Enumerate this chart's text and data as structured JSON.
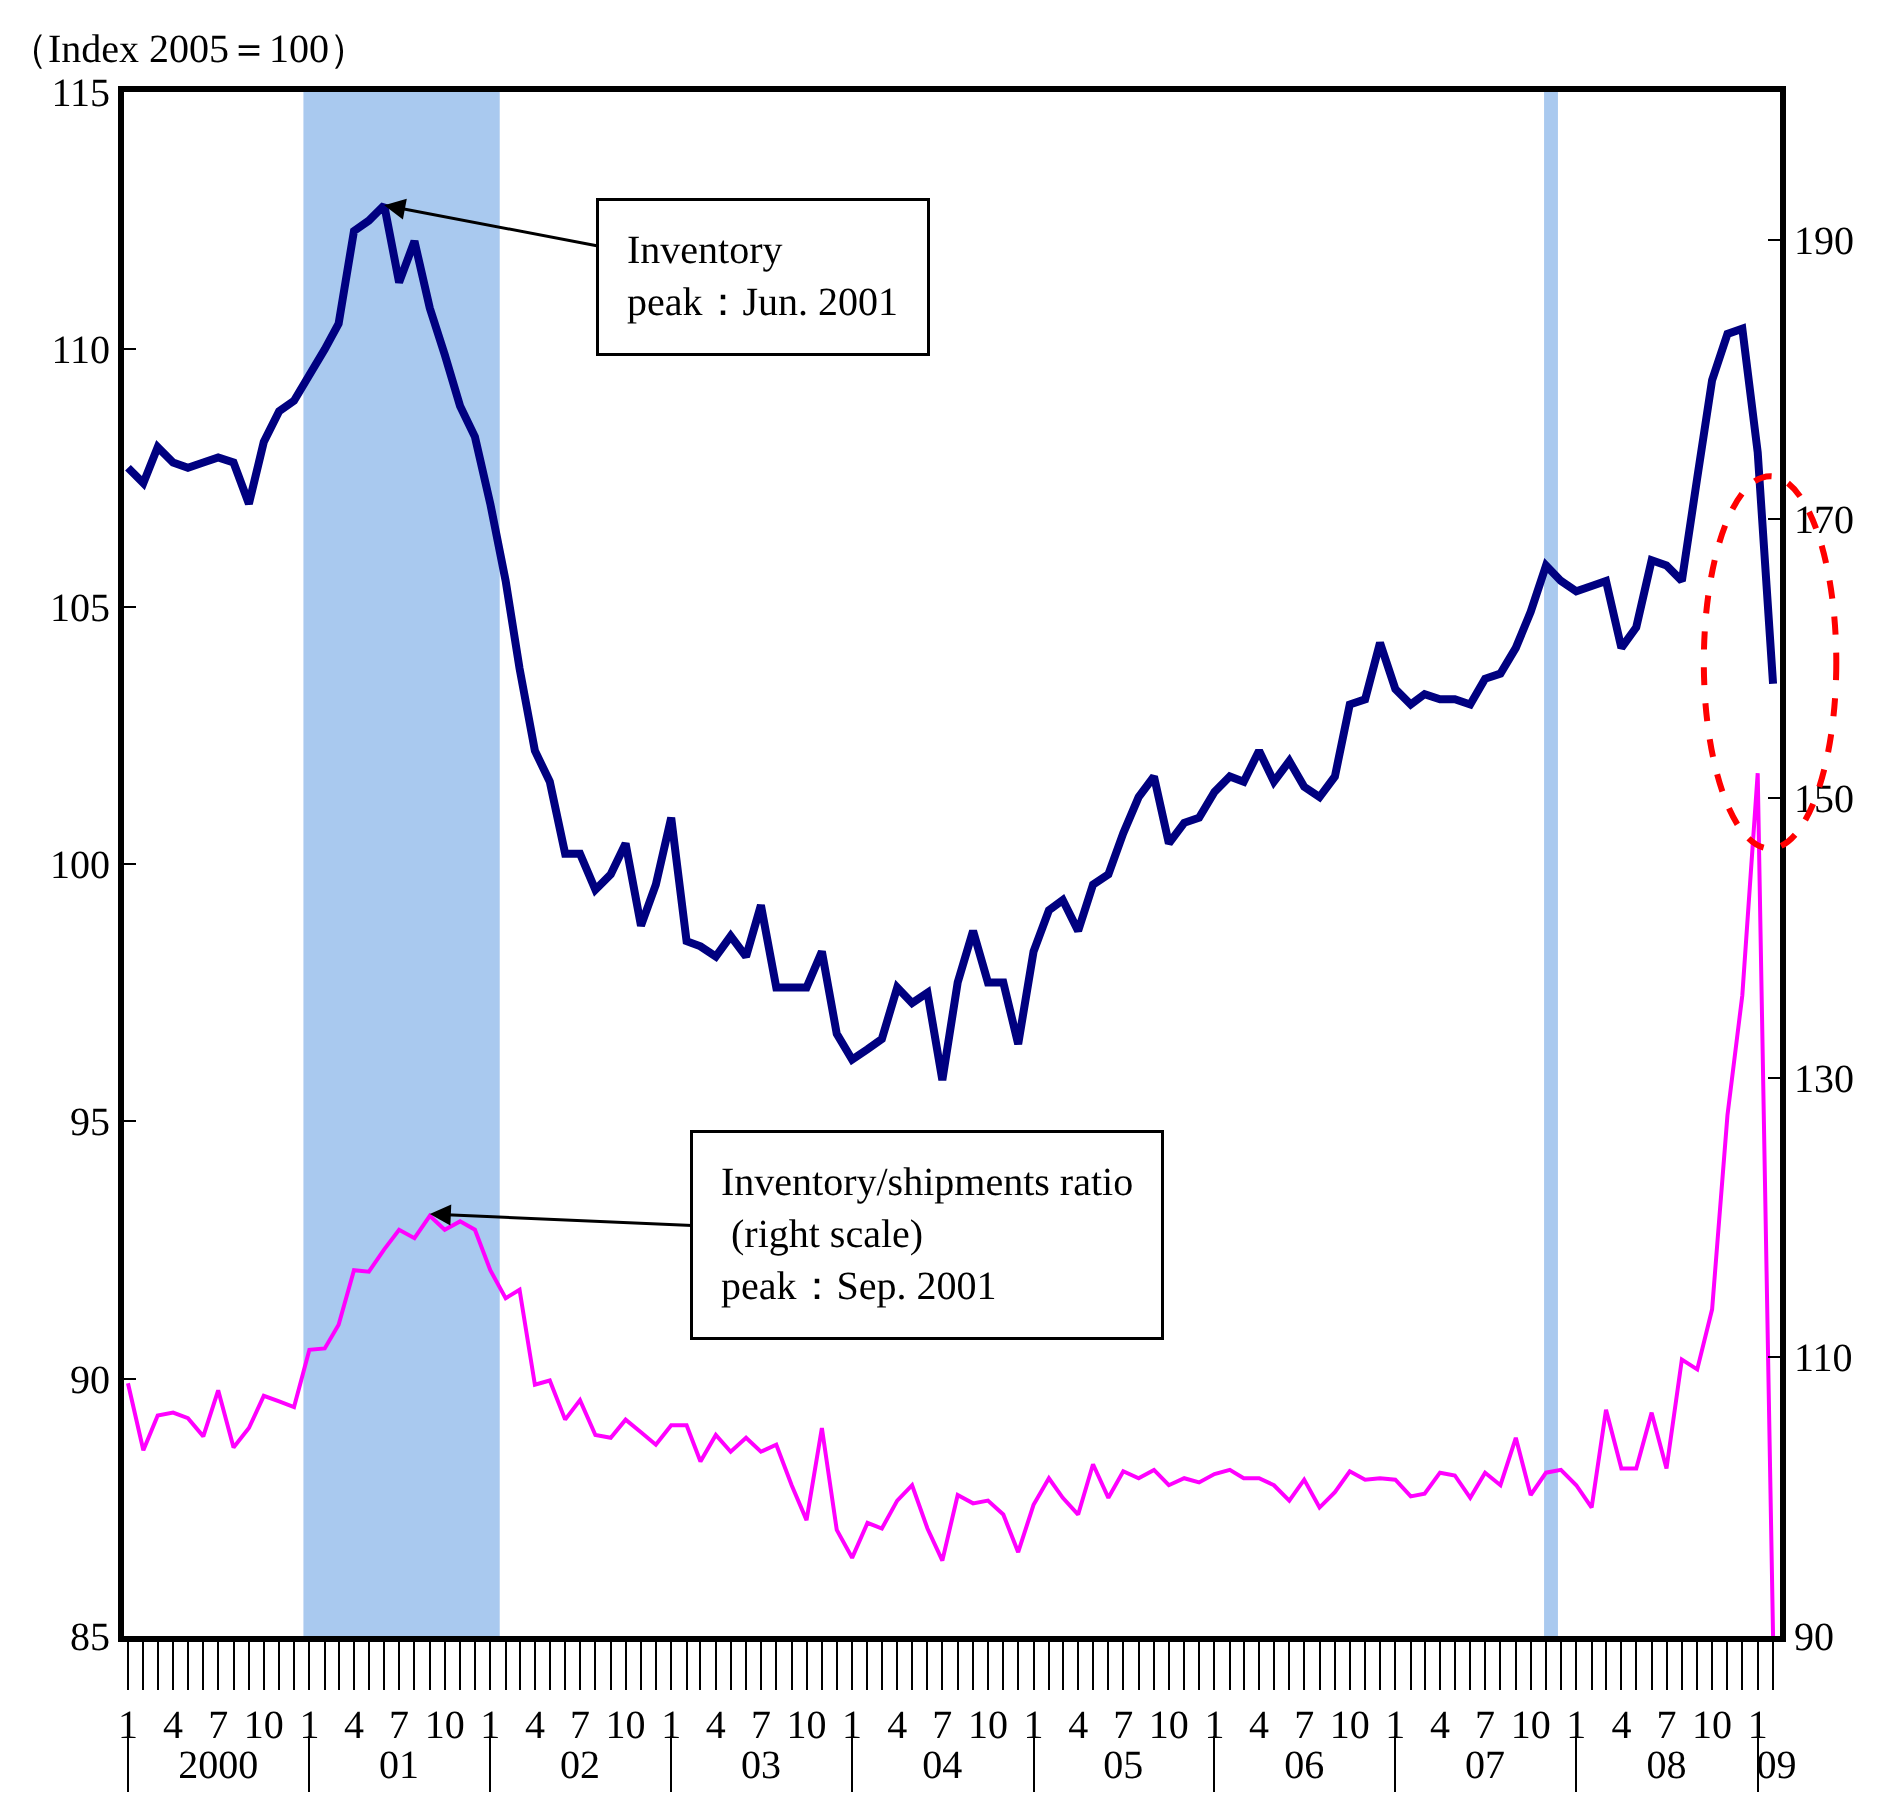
{
  "chart_data": {
    "type": "line",
    "ylabel": "（Index 2005＝100）",
    "annotations": [
      {
        "text": "Inventory\npeak：Jun. 2001",
        "x": "2001-06",
        "y": 112.8
      },
      {
        "text": "Inventory/shipments ratio\n (right scale)\npeak：Sep. 2001",
        "x": "2001-09",
        "y": 93.2
      }
    ],
    "x": [
      "2000-01",
      "2000-02",
      "2000-03",
      "2000-04",
      "2000-05",
      "2000-06",
      "2000-07",
      "2000-08",
      "2000-09",
      "2000-10",
      "2000-11",
      "2000-12",
      "2001-01",
      "2001-02",
      "2001-03",
      "2001-04",
      "2001-05",
      "2001-06",
      "2001-07",
      "2001-08",
      "2001-09",
      "2001-10",
      "2001-11",
      "2001-12",
      "2002-01",
      "2002-02",
      "2002-03",
      "2002-04",
      "2002-05",
      "2002-06",
      "2002-07",
      "2002-08",
      "2002-09",
      "2002-10",
      "2002-11",
      "2002-12",
      "2003-01",
      "2003-02",
      "2003-03",
      "2003-04",
      "2003-05",
      "2003-06",
      "2003-07",
      "2003-08",
      "2003-09",
      "2003-10",
      "2003-11",
      "2003-12",
      "2004-01",
      "2004-02",
      "2004-03",
      "2004-04",
      "2004-05",
      "2004-06",
      "2004-07",
      "2004-08",
      "2004-09",
      "2004-10",
      "2004-11",
      "2004-12",
      "2005-01",
      "2005-02",
      "2005-03",
      "2005-04",
      "2005-05",
      "2005-06",
      "2005-07",
      "2005-08",
      "2005-09",
      "2005-10",
      "2005-11",
      "2005-12",
      "2006-01",
      "2006-02",
      "2006-03",
      "2006-04",
      "2006-05",
      "2006-06",
      "2006-07",
      "2006-08",
      "2006-09",
      "2006-10",
      "2006-11",
      "2006-12",
      "2007-01",
      "2007-02",
      "2007-03",
      "2007-04",
      "2007-05",
      "2007-06",
      "2007-07",
      "2007-08",
      "2007-09",
      "2007-10",
      "2007-11",
      "2007-12",
      "2008-01",
      "2008-02",
      "2008-03",
      "2008-04",
      "2008-05",
      "2008-06",
      "2008-07",
      "2008-08",
      "2008-09",
      "2008-10",
      "2008-11",
      "2008-12",
      "2009-01",
      "2009-02"
    ],
    "series": [
      {
        "color": "#000080",
        "values": [
          107.7,
          107.4,
          108.1,
          107.8,
          107.7,
          107.8,
          107.9,
          107.8,
          107.0,
          108.2,
          108.8,
          109.0,
          109.5,
          110.0,
          110.5,
          112.3,
          112.5,
          112.8,
          111.3,
          112.1,
          110.8,
          109.9,
          108.9,
          108.3,
          107.0,
          105.5,
          103.8,
          102.2,
          101.6,
          100.2,
          100.2,
          99.5,
          99.8,
          100.4,
          98.8,
          99.6,
          100.9,
          98.5,
          98.4,
          98.2,
          98.6,
          98.2,
          99.2,
          97.6,
          97.6,
          97.6,
          98.3,
          96.7,
          96.2,
          96.4,
          96.6,
          97.6,
          97.3,
          97.5,
          95.8,
          97.7,
          98.7,
          97.7,
          97.7,
          96.5,
          98.3,
          99.1,
          99.3,
          98.7,
          99.6,
          99.8,
          100.6,
          101.3,
          101.7,
          100.4,
          100.8,
          100.9,
          101.4,
          101.7,
          101.6,
          102.2,
          101.6,
          102.0,
          101.5,
          101.3,
          101.7,
          103.1,
          103.2,
          104.3,
          103.4,
          103.1,
          103.3,
          103.2,
          103.2,
          103.1,
          103.6,
          103.7,
          104.2,
          104.9,
          105.8,
          105.5,
          105.3,
          105.4,
          105.5,
          104.2,
          104.6,
          105.9,
          105.8,
          105.5,
          107.5,
          109.4,
          110.3,
          110.4,
          108.0,
          103.5
        ]
      },
      {
        "color": "#ff00ff",
        "axis": "y2",
        "values": [
          108.1,
          103.3,
          105.8,
          106.0,
          105.6,
          104.3,
          107.6,
          103.5,
          104.9,
          107.2,
          106.8,
          106.4,
          110.5,
          110.6,
          112.3,
          116.2,
          116.1,
          117.7,
          119.1,
          118.5,
          120.1,
          119.1,
          119.7,
          119.1,
          116.2,
          114.2,
          114.8,
          108.0,
          108.3,
          105.5,
          106.9,
          104.4,
          104.2,
          105.5,
          104.6,
          103.7,
          105.1,
          105.1,
          102.5,
          104.4,
          103.2,
          104.2,
          103.2,
          103.7,
          100.8,
          98.3,
          104.9,
          97.6,
          95.6,
          98.1,
          97.7,
          99.7,
          100.8,
          97.7,
          95.4,
          100.1,
          99.5,
          99.7,
          98.7,
          96.0,
          99.4,
          101.3,
          99.9,
          98.7,
          102.3,
          99.9,
          101.8,
          101.3,
          101.9,
          100.8,
          101.3,
          101.0,
          101.6,
          101.9,
          101.3,
          101.3,
          100.8,
          99.7,
          101.2,
          99.2,
          100.3,
          101.8,
          101.2,
          101.3,
          101.2,
          100.0,
          100.2,
          101.7,
          101.5,
          99.9,
          101.7,
          100.8,
          104.2,
          100.1,
          101.7,
          101.9,
          100.8,
          99.2,
          106.2,
          102.0,
          102.0,
          106.0,
          102.0,
          109.8,
          109.1,
          113.4,
          127.3,
          135.9,
          151.8,
          90
        ]
      }
    ],
    "xlim": [
      "1999-12-24",
      "2009-02-15"
    ],
    "xticks": [
      {
        "value": "2000-01",
        "label": "1"
      },
      {
        "value": "2000-04",
        "label": "4"
      },
      {
        "value": "2000-07",
        "label": "7"
      },
      {
        "value": "2000-10",
        "label": "10"
      },
      {
        "value": "2001-01",
        "label": "1"
      },
      {
        "value": "2001-04",
        "label": "4"
      },
      {
        "value": "2001-07",
        "label": "7"
      },
      {
        "value": "2001-10",
        "label": "10"
      },
      {
        "value": "2002-01",
        "label": "1"
      },
      {
        "value": "2002-04",
        "label": "4"
      },
      {
        "value": "2002-07",
        "label": "7"
      },
      {
        "value": "2002-10",
        "label": "10"
      },
      {
        "value": "2003-01",
        "label": "1"
      },
      {
        "value": "2003-04",
        "label": "4"
      },
      {
        "value": "2003-07",
        "label": "7"
      },
      {
        "value": "2003-10",
        "label": "10"
      },
      {
        "value": "2004-01",
        "label": "1"
      },
      {
        "value": "2004-04",
        "label": "4"
      },
      {
        "value": "2004-07",
        "label": "7"
      },
      {
        "value": "2004-10",
        "label": "10"
      },
      {
        "value": "2005-01",
        "label": "1"
      },
      {
        "value": "2005-04",
        "label": "4"
      },
      {
        "value": "2005-07",
        "label": "7"
      },
      {
        "value": "2005-10",
        "label": "10"
      },
      {
        "value": "2006-01",
        "label": "1"
      },
      {
        "value": "2006-04",
        "label": "4"
      },
      {
        "value": "2006-07",
        "label": "7"
      },
      {
        "value": "2006-10",
        "label": "10"
      },
      {
        "value": "2007-01",
        "label": "1"
      },
      {
        "value": "2007-04",
        "label": "4"
      },
      {
        "value": "2007-07",
        "label": "7"
      },
      {
        "value": "2007-10",
        "label": "10"
      },
      {
        "value": "2008-01",
        "label": "1"
      },
      {
        "value": "2008-04",
        "label": "4"
      },
      {
        "value": "2008-07",
        "label": "7"
      },
      {
        "value": "2008-10",
        "label": "10"
      },
      {
        "value": "2009-01",
        "label": "1"
      }
    ],
    "x2lim": [
      "1999-12-24",
      "2009-02-15"
    ],
    "x2ticks": [
      {
        "value": "2000-07-01",
        "label": "2000"
      },
      {
        "value": "2001-07-01",
        "label": "01"
      },
      {
        "value": "2002-07-01",
        "label": "02"
      },
      {
        "value": "2003-07-01",
        "label": "03"
      },
      {
        "value": "2004-07-01",
        "label": "04"
      },
      {
        "value": "2005-07-01",
        "label": "05"
      },
      {
        "value": "2006-07-01",
        "label": "06"
      },
      {
        "value": "2007-07-01",
        "label": "07"
      },
      {
        "value": "2008-07-01",
        "label": "08"
      },
      {
        "value": "2009-02-08",
        "label": "09"
      }
    ],
    "ylim": [
      85,
      115
    ],
    "yticks": [
      85,
      90,
      95,
      100,
      105,
      110,
      115
    ],
    "y2lim": [
      90,
      200.6
    ],
    "y2ticks": [
      90,
      110,
      130,
      150,
      170,
      190
    ],
    "bands": [
      {
        "axis": "x",
        "from": "2000-12-20",
        "to": "2002-01-20",
        "color": "#a9c9ef"
      },
      {
        "axis": "x",
        "from": "2007-10-28",
        "to": "2007-11-25",
        "color": "#a9c9ef"
      }
    ]
  }
}
